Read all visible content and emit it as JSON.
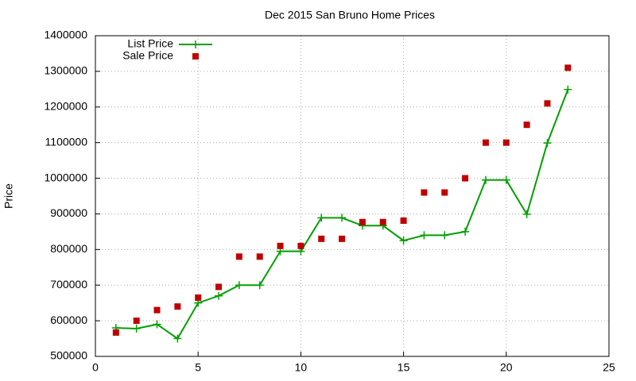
{
  "chart_data": {
    "type": "line",
    "title": "Dec 2015 San Bruno Home Prices",
    "y_label": "Price",
    "x": [
      1,
      2,
      3,
      4,
      5,
      6,
      7,
      8,
      9,
      10,
      11,
      12,
      13,
      14,
      15,
      16,
      17,
      18,
      19,
      20,
      21,
      22,
      23
    ],
    "series": [
      {
        "name": "List Price",
        "color": "#00a000",
        "style": "linespoints",
        "values": [
          580000,
          578000,
          590000,
          550000,
          650000,
          670000,
          700000,
          700000,
          795000,
          795000,
          889000,
          889000,
          867000,
          867000,
          825000,
          840000,
          840000,
          850000,
          995000,
          995000,
          899000,
          1099000,
          1249000
        ]
      },
      {
        "name": "Sale Price",
        "color": "#c00000",
        "style": "points",
        "values": [
          567000,
          600000,
          630000,
          640000,
          665000,
          695000,
          780000,
          780000,
          810000,
          810000,
          830000,
          830000,
          877000,
          877000,
          881000,
          960000,
          960000,
          1000000,
          1100000,
          1100000,
          1150000,
          1210000,
          1310000
        ]
      }
    ],
    "xlim": [
      0,
      25
    ],
    "xticks": [
      0,
      5,
      10,
      15,
      20,
      25
    ],
    "ylim": [
      500000,
      1400000
    ],
    "yticks": [
      500000,
      600000,
      700000,
      800000,
      900000,
      1000000,
      1100000,
      1200000,
      1300000,
      1400000
    ],
    "grid": true,
    "legend": "top-left"
  }
}
